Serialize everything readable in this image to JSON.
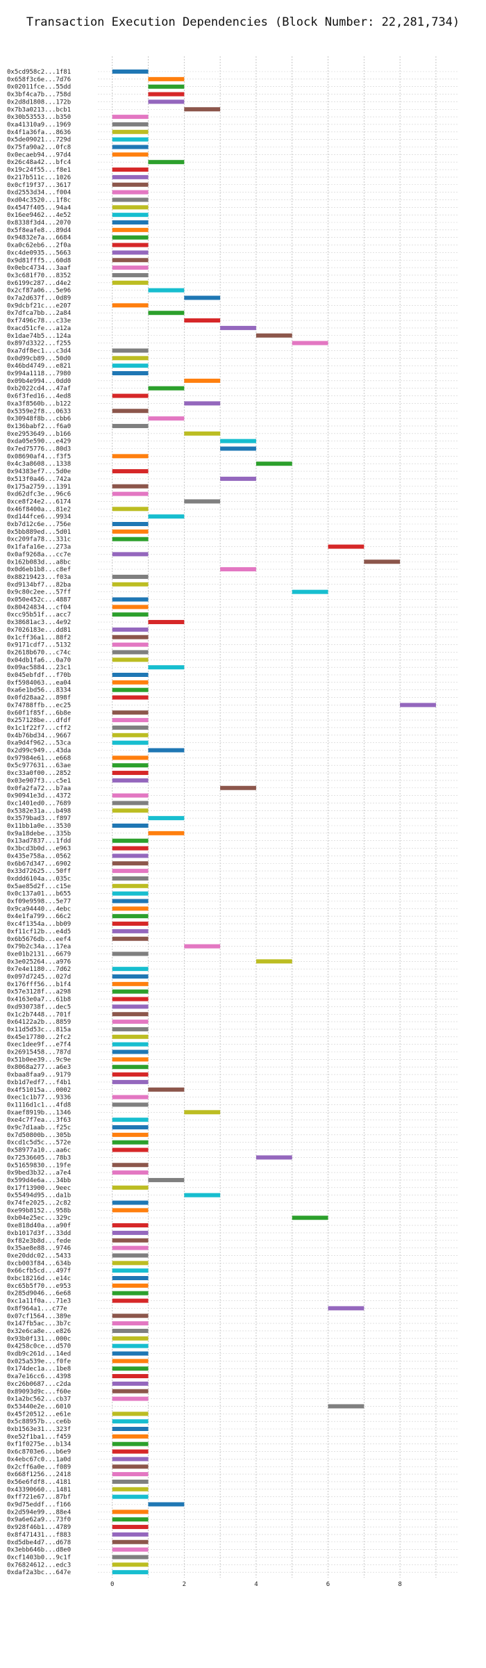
{
  "chart_data": {
    "type": "bar",
    "title": "Transaction Execution Dependencies (Block Number: 22,281,734)",
    "xlabel": "",
    "ylabel": "",
    "xlim": [
      -0.4,
      9.6
    ],
    "xticks": [
      0,
      2,
      4,
      6,
      8
    ],
    "grid": true,
    "palette": [
      "#1f77b4",
      "#ff7f0e",
      "#2ca02c",
      "#d62728",
      "#9467bd",
      "#8c564b",
      "#e377c2",
      "#7f7f7f",
      "#bcbd22",
      "#17becf"
    ],
    "transactions": [
      {
        "label": "0x5cd958c2...1f81",
        "start": 0,
        "end": 1
      },
      {
        "label": "0x658f3c6e...7d76",
        "start": 1,
        "end": 2
      },
      {
        "label": "0x02011fce...55dd",
        "start": 1,
        "end": 2
      },
      {
        "label": "0x3bf4ca7b...758d",
        "start": 1,
        "end": 2
      },
      {
        "label": "0x2d8d1808...172b",
        "start": 1,
        "end": 2
      },
      {
        "label": "0x7b3a0213...bcb1",
        "start": 2,
        "end": 3
      },
      {
        "label": "0x30b53553...b350",
        "start": 0,
        "end": 1
      },
      {
        "label": "0xa41310a9...1969",
        "start": 0,
        "end": 1
      },
      {
        "label": "0x4f1a36fa...8636",
        "start": 0,
        "end": 1
      },
      {
        "label": "0x5de09021...729d",
        "start": 0,
        "end": 1
      },
      {
        "label": "0x75fa90a2...0fc8",
        "start": 0,
        "end": 1
      },
      {
        "label": "0x0ecaeb94...97d4",
        "start": 0,
        "end": 1
      },
      {
        "label": "0x26c48a42...bfc4",
        "start": 1,
        "end": 2
      },
      {
        "label": "0x19c24f55...f8e1",
        "start": 0,
        "end": 1
      },
      {
        "label": "0x217b511c...1026",
        "start": 0,
        "end": 1
      },
      {
        "label": "0x0cf19f37...3617",
        "start": 0,
        "end": 1
      },
      {
        "label": "0xd2553d34...f004",
        "start": 0,
        "end": 1
      },
      {
        "label": "0xd04c3520...1f8c",
        "start": 0,
        "end": 1
      },
      {
        "label": "0x4547f405...94a4",
        "start": 0,
        "end": 1
      },
      {
        "label": "0x16ee9462...4e52",
        "start": 0,
        "end": 1
      },
      {
        "label": "0x8338f3d4...2070",
        "start": 0,
        "end": 1
      },
      {
        "label": "0x5f8eafe8...89d4",
        "start": 0,
        "end": 1
      },
      {
        "label": "0x94832e7a...6684",
        "start": 0,
        "end": 1
      },
      {
        "label": "0xa0c62eb6...2f0a",
        "start": 0,
        "end": 1
      },
      {
        "label": "0xc4de0935...5663",
        "start": 0,
        "end": 1
      },
      {
        "label": "0x9d81fff5...60d8",
        "start": 0,
        "end": 1
      },
      {
        "label": "0x0ebc4734...3aaf",
        "start": 0,
        "end": 1
      },
      {
        "label": "0x3c681f70...8352",
        "start": 0,
        "end": 1
      },
      {
        "label": "0x6199c287...d4e2",
        "start": 0,
        "end": 1
      },
      {
        "label": "0x2cf87a06...5e96",
        "start": 1,
        "end": 2
      },
      {
        "label": "0x7a2d637f...0d89",
        "start": 2,
        "end": 3
      },
      {
        "label": "0x9dcbf21c...e207",
        "start": 0,
        "end": 1
      },
      {
        "label": "0x7dfca7bb...2a84",
        "start": 1,
        "end": 2
      },
      {
        "label": "0xf7496c78...c33e",
        "start": 2,
        "end": 3
      },
      {
        "label": "0xacd51cfe...a12a",
        "start": 3,
        "end": 4
      },
      {
        "label": "0x1dae74b5...124a",
        "start": 4,
        "end": 5
      },
      {
        "label": "0x897d3322...f255",
        "start": 5,
        "end": 6
      },
      {
        "label": "0xa7df8ec1...c3d4",
        "start": 0,
        "end": 1
      },
      {
        "label": "0x0d99cb89...50d0",
        "start": 0,
        "end": 1
      },
      {
        "label": "0x46bd4749...e821",
        "start": 0,
        "end": 1
      },
      {
        "label": "0x994a1118...7980",
        "start": 0,
        "end": 1
      },
      {
        "label": "0x09b4e994...0dd0",
        "start": 2,
        "end": 3
      },
      {
        "label": "0xb2022cd4...47af",
        "start": 1,
        "end": 2
      },
      {
        "label": "0x6f3fed16...4ed8",
        "start": 0,
        "end": 1
      },
      {
        "label": "0xa3f8560b...b122",
        "start": 2,
        "end": 3
      },
      {
        "label": "0x5359e2f8...0633",
        "start": 0,
        "end": 1
      },
      {
        "label": "0x30948f8b...cbb6",
        "start": 1,
        "end": 2
      },
      {
        "label": "0x136babf2...f6a0",
        "start": 0,
        "end": 1
      },
      {
        "label": "0xe2953649...b166",
        "start": 2,
        "end": 3
      },
      {
        "label": "0xda05e590...e429",
        "start": 3,
        "end": 4
      },
      {
        "label": "0x7ed75776...80d3",
        "start": 3,
        "end": 4
      },
      {
        "label": "0x08690af4...f3f5",
        "start": 0,
        "end": 1
      },
      {
        "label": "0x4c3a8608...1338",
        "start": 4,
        "end": 5
      },
      {
        "label": "0x94383ef7...5d0e",
        "start": 0,
        "end": 1
      },
      {
        "label": "0x513f0a46...742a",
        "start": 3,
        "end": 4
      },
      {
        "label": "0x175a2759...1391",
        "start": 0,
        "end": 1
      },
      {
        "label": "0xd62dfc3e...96c6",
        "start": 0,
        "end": 1
      },
      {
        "label": "0xce8f24e2...6174",
        "start": 2,
        "end": 3
      },
      {
        "label": "0x46f8400a...81e2",
        "start": 0,
        "end": 1
      },
      {
        "label": "0xd144fce6...9934",
        "start": 1,
        "end": 2
      },
      {
        "label": "0xb7d12c6e...756e",
        "start": 0,
        "end": 1
      },
      {
        "label": "0x5bb889ed...5d01",
        "start": 0,
        "end": 1
      },
      {
        "label": "0xc209fa78...331c",
        "start": 0,
        "end": 1
      },
      {
        "label": "0x1fafa16e...273a",
        "start": 6,
        "end": 7
      },
      {
        "label": "0x0af9268a...cc7e",
        "start": 0,
        "end": 1
      },
      {
        "label": "0x162b083d...a8bc",
        "start": 7,
        "end": 8
      },
      {
        "label": "0x0d6eb1b8...c8ef",
        "start": 3,
        "end": 4
      },
      {
        "label": "0x88219423...f03a",
        "start": 0,
        "end": 1
      },
      {
        "label": "0xd9134bf7...82ba",
        "start": 0,
        "end": 1
      },
      {
        "label": "0x9c80c2ee...57ff",
        "start": 5,
        "end": 6
      },
      {
        "label": "0x050e452c...4887",
        "start": 0,
        "end": 1
      },
      {
        "label": "0x80424834...cf04",
        "start": 0,
        "end": 1
      },
      {
        "label": "0xcc95b51f...acc7",
        "start": 0,
        "end": 1
      },
      {
        "label": "0x38681ac3...4e92",
        "start": 1,
        "end": 2
      },
      {
        "label": "0x7026183e...dd81",
        "start": 0,
        "end": 1
      },
      {
        "label": "0x1cff36a1...88f2",
        "start": 0,
        "end": 1
      },
      {
        "label": "0x9171cdf7...5132",
        "start": 0,
        "end": 1
      },
      {
        "label": "0x2618b670...c74c",
        "start": 0,
        "end": 1
      },
      {
        "label": "0x04db1fa6...0a70",
        "start": 0,
        "end": 1
      },
      {
        "label": "0x09ac5884...23c1",
        "start": 1,
        "end": 2
      },
      {
        "label": "0x045ebfdf...f70b",
        "start": 0,
        "end": 1
      },
      {
        "label": "0xf5984063...ea04",
        "start": 0,
        "end": 1
      },
      {
        "label": "0xa6e1bd56...8334",
        "start": 0,
        "end": 1
      },
      {
        "label": "0x0fd28aa2...898f",
        "start": 0,
        "end": 1
      },
      {
        "label": "0x74788ffb...ec25",
        "start": 8,
        "end": 9
      },
      {
        "label": "0x60f1f85f...6b8e",
        "start": 0,
        "end": 1
      },
      {
        "label": "0x257128be...dfdf",
        "start": 0,
        "end": 1
      },
      {
        "label": "0x1c1f22f7...cff2",
        "start": 0,
        "end": 1
      },
      {
        "label": "0x4b76bd34...9667",
        "start": 0,
        "end": 1
      },
      {
        "label": "0xa9d4f962...53ca",
        "start": 0,
        "end": 1
      },
      {
        "label": "0x2d99c949...43da",
        "start": 1,
        "end": 2
      },
      {
        "label": "0x97984e61...e668",
        "start": 0,
        "end": 1
      },
      {
        "label": "0x5c977631...63ae",
        "start": 0,
        "end": 1
      },
      {
        "label": "0xc33a0f00...2852",
        "start": 0,
        "end": 1
      },
      {
        "label": "0x03e907f3...c5e1",
        "start": 0,
        "end": 1
      },
      {
        "label": "0x0fa2fa72...b7aa",
        "start": 3,
        "end": 4
      },
      {
        "label": "0x90941e3d...4372",
        "start": 0,
        "end": 1
      },
      {
        "label": "0xc1401ed0...7689",
        "start": 0,
        "end": 1
      },
      {
        "label": "0x5382e31a...b498",
        "start": 0,
        "end": 1
      },
      {
        "label": "0x3579bad3...f897",
        "start": 1,
        "end": 2
      },
      {
        "label": "0x11bb1a0e...3530",
        "start": 0,
        "end": 1
      },
      {
        "label": "0x9a18debe...335b",
        "start": 1,
        "end": 2
      },
      {
        "label": "0x13ad7837...1fdd",
        "start": 0,
        "end": 1
      },
      {
        "label": "0x3bcd3b0d...e963",
        "start": 0,
        "end": 1
      },
      {
        "label": "0x435e758a...0562",
        "start": 0,
        "end": 1
      },
      {
        "label": "0x6b67d347...6902",
        "start": 0,
        "end": 1
      },
      {
        "label": "0x33d72625...50ff",
        "start": 0,
        "end": 1
      },
      {
        "label": "0xddd6104a...035c",
        "start": 0,
        "end": 1
      },
      {
        "label": "0x5ae85d2f...c15e",
        "start": 0,
        "end": 1
      },
      {
        "label": "0x0c137a01...b655",
        "start": 0,
        "end": 1
      },
      {
        "label": "0xf09e9598...5e77",
        "start": 0,
        "end": 1
      },
      {
        "label": "0x9ca94440...4ebc",
        "start": 0,
        "end": 1
      },
      {
        "label": "0x4e1fa799...66c2",
        "start": 0,
        "end": 1
      },
      {
        "label": "0xc4f1354a...bb09",
        "start": 0,
        "end": 1
      },
      {
        "label": "0xf11cf12b...e4d5",
        "start": 0,
        "end": 1
      },
      {
        "label": "0x6b5676db...eef4",
        "start": 0,
        "end": 1
      },
      {
        "label": "0x79b2c34a...17ea",
        "start": 2,
        "end": 3
      },
      {
        "label": "0xe01b2131...6679",
        "start": 0,
        "end": 1
      },
      {
        "label": "0x3e025264...a976",
        "start": 4,
        "end": 5
      },
      {
        "label": "0x7e4e1180...7d62",
        "start": 0,
        "end": 1
      },
      {
        "label": "0x097d7245...027d",
        "start": 0,
        "end": 1
      },
      {
        "label": "0x176fff56...b1f4",
        "start": 0,
        "end": 1
      },
      {
        "label": "0x57e3128f...a298",
        "start": 0,
        "end": 1
      },
      {
        "label": "0x4163e0a7...61b8",
        "start": 0,
        "end": 1
      },
      {
        "label": "0xd930738f...dec5",
        "start": 0,
        "end": 1
      },
      {
        "label": "0x1c2b7448...701f",
        "start": 0,
        "end": 1
      },
      {
        "label": "0x64122a2b...8859",
        "start": 0,
        "end": 1
      },
      {
        "label": "0x11d5d53c...815a",
        "start": 0,
        "end": 1
      },
      {
        "label": "0x45e17780...2fc2",
        "start": 0,
        "end": 1
      },
      {
        "label": "0xec1dee9f...e7f4",
        "start": 0,
        "end": 1
      },
      {
        "label": "0x26915458...787d",
        "start": 0,
        "end": 1
      },
      {
        "label": "0x51b0ee39...9c9e",
        "start": 0,
        "end": 1
      },
      {
        "label": "0x8068a277...a6e3",
        "start": 0,
        "end": 1
      },
      {
        "label": "0xbaa8faa9...9179",
        "start": 0,
        "end": 1
      },
      {
        "label": "0xb1d7edf7...f4b1",
        "start": 0,
        "end": 1
      },
      {
        "label": "0x4f51015a...0002",
        "start": 1,
        "end": 2
      },
      {
        "label": "0xec1c1b77...9336",
        "start": 0,
        "end": 1
      },
      {
        "label": "0x1116d1c1...4fd8",
        "start": 0,
        "end": 1
      },
      {
        "label": "0xaef8919b...1346",
        "start": 2,
        "end": 3
      },
      {
        "label": "0xe4c7f7ea...3f63",
        "start": 0,
        "end": 1
      },
      {
        "label": "0x9c7d1aab...f25c",
        "start": 0,
        "end": 1
      },
      {
        "label": "0x7d50800b...305b",
        "start": 0,
        "end": 1
      },
      {
        "label": "0xcd1c5d5c...572e",
        "start": 0,
        "end": 1
      },
      {
        "label": "0x58977a10...aa6c",
        "start": 0,
        "end": 1
      },
      {
        "label": "0x72536605...78b3",
        "start": 4,
        "end": 5
      },
      {
        "label": "0x51659830...19fe",
        "start": 0,
        "end": 1
      },
      {
        "label": "0x9bed3b32...a7e4",
        "start": 0,
        "end": 1
      },
      {
        "label": "0x599d4e6a...34bb",
        "start": 1,
        "end": 2
      },
      {
        "label": "0x17f13900...9eec",
        "start": 0,
        "end": 1
      },
      {
        "label": "0x55494d95...da1b",
        "start": 2,
        "end": 3
      },
      {
        "label": "0x74fe2025...2c82",
        "start": 0,
        "end": 1
      },
      {
        "label": "0xe99b8152...958b",
        "start": 0,
        "end": 1
      },
      {
        "label": "0xb04e25ec...329c",
        "start": 5,
        "end": 6
      },
      {
        "label": "0xe818d40a...a90f",
        "start": 0,
        "end": 1
      },
      {
        "label": "0xb1017d3f...33dd",
        "start": 0,
        "end": 1
      },
      {
        "label": "0xf82e3b8d...fede",
        "start": 0,
        "end": 1
      },
      {
        "label": "0x35ae8e88...9746",
        "start": 0,
        "end": 1
      },
      {
        "label": "0xe20ddc02...5433",
        "start": 0,
        "end": 1
      },
      {
        "label": "0xcb003f84...634b",
        "start": 0,
        "end": 1
      },
      {
        "label": "0x66cfb5cd...497f",
        "start": 0,
        "end": 1
      },
      {
        "label": "0xbc18216d...e14c",
        "start": 0,
        "end": 1
      },
      {
        "label": "0xc65b5f70...e953",
        "start": 0,
        "end": 1
      },
      {
        "label": "0x285d9046...6e68",
        "start": 0,
        "end": 1
      },
      {
        "label": "0xc1a11f0a...71e3",
        "start": 0,
        "end": 1
      },
      {
        "label": "0x8f964a1...c77e",
        "start": 6,
        "end": 7
      },
      {
        "label": "0x07cf1564...389e",
        "start": 0,
        "end": 1
      },
      {
        "label": "0x147fb5ac...3b7c",
        "start": 0,
        "end": 1
      },
      {
        "label": "0x32e6ca8e...e826",
        "start": 0,
        "end": 1
      },
      {
        "label": "0x93b0f131...000c",
        "start": 0,
        "end": 1
      },
      {
        "label": "0x4258c0ce...d570",
        "start": 0,
        "end": 1
      },
      {
        "label": "0xdb9c261d...14ed",
        "start": 0,
        "end": 1
      },
      {
        "label": "0x025a539e...f0fe",
        "start": 0,
        "end": 1
      },
      {
        "label": "0x174dec1a...1be8",
        "start": 0,
        "end": 1
      },
      {
        "label": "0xa7e16cc6...4398",
        "start": 0,
        "end": 1
      },
      {
        "label": "0xc26b0687...c2da",
        "start": 0,
        "end": 1
      },
      {
        "label": "0x89093d9c...f60e",
        "start": 0,
        "end": 1
      },
      {
        "label": "0x1a2bc562...cb37",
        "start": 0,
        "end": 1
      },
      {
        "label": "0x53440e2e...6010",
        "start": 6,
        "end": 7
      },
      {
        "label": "0x45f20512...e61e",
        "start": 0,
        "end": 1
      },
      {
        "label": "0x5c88957b...ce6b",
        "start": 0,
        "end": 1
      },
      {
        "label": "0xb1563e31...323f",
        "start": 0,
        "end": 1
      },
      {
        "label": "0xe52f1ba1...f459",
        "start": 0,
        "end": 1
      },
      {
        "label": "0xf1f0275e...b134",
        "start": 0,
        "end": 1
      },
      {
        "label": "0x6c8703e6...b6e9",
        "start": 0,
        "end": 1
      },
      {
        "label": "0x4ebc67c0...1a0d",
        "start": 0,
        "end": 1
      },
      {
        "label": "0x2cff6a0e...f089",
        "start": 0,
        "end": 1
      },
      {
        "label": "0x668f1256...2418",
        "start": 0,
        "end": 1
      },
      {
        "label": "0x56e6fdf8...4181",
        "start": 0,
        "end": 1
      },
      {
        "label": "0x43390660...1481",
        "start": 0,
        "end": 1
      },
      {
        "label": "0xff721e67...87bf",
        "start": 0,
        "end": 1
      },
      {
        "label": "0x9d75eddf...f166",
        "start": 1,
        "end": 2
      },
      {
        "label": "0x2d594e99...88e4",
        "start": 0,
        "end": 1
      },
      {
        "label": "0x9a6e62a9...73f0",
        "start": 0,
        "end": 1
      },
      {
        "label": "0x928f46b1...4789",
        "start": 0,
        "end": 1
      },
      {
        "label": "0x8f471431...f883",
        "start": 0,
        "end": 1
      },
      {
        "label": "0xd5dbe4d7...d678",
        "start": 0,
        "end": 1
      },
      {
        "label": "0x3ebb646b...d8e0",
        "start": 0,
        "end": 1
      },
      {
        "label": "0xcf1403b0...9c1f",
        "start": 0,
        "end": 1
      },
      {
        "label": "0x76824612...edc3",
        "start": 0,
        "end": 1
      },
      {
        "label": "0xdaf2a3bc...647e",
        "start": 0,
        "end": 1
      }
    ]
  }
}
